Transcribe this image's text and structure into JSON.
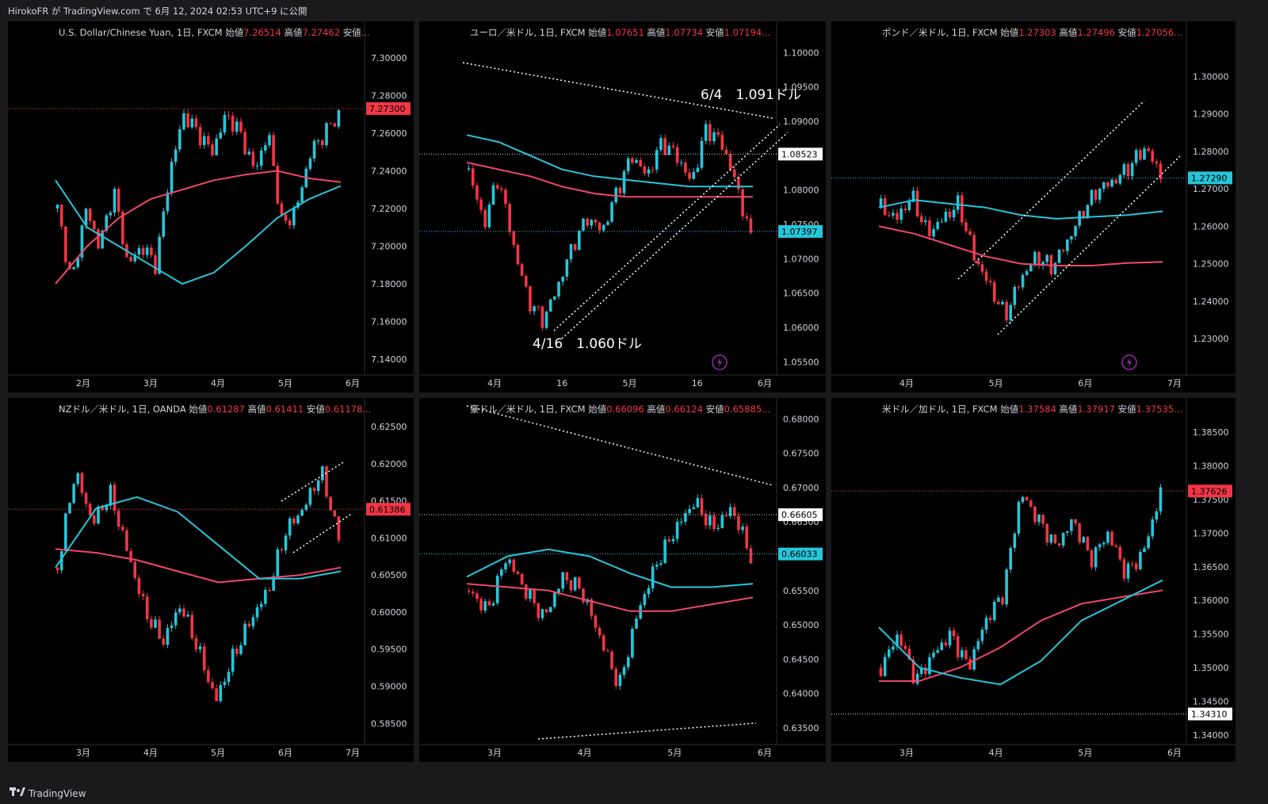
{
  "header": {
    "published_line": "HirokoFR が TradingView.com で 6月 12, 2024 02:53 UTC+9 に公開"
  },
  "footer": {
    "brand": "TradingView",
    "logo_icon": "tradingview-logo-icon"
  },
  "colors": {
    "up": "#26c6da",
    "down": "#f23645",
    "ma_fast": "#26c6da",
    "ma_slow": "#f2466e",
    "background": "#000000",
    "grid_bg": "#1a1a1d"
  },
  "panels": [
    {
      "id": "usdcny",
      "title": "U.S. Dollar/Chinese Yuan, 1日, FXCM",
      "open_label": "始値",
      "open": "7.26514",
      "high_label": "高値",
      "high": "7.27462",
      "low_label": "安値",
      "low_trunc": "...",
      "chart_data": {
        "type": "candlestick",
        "ylim": [
          7.135,
          7.31
        ],
        "yticks": [
          "7.30000",
          "7.28000",
          "7.26000",
          "7.24000",
          "7.22000",
          "7.20000",
          "7.18000",
          "7.16000",
          "7.14000"
        ],
        "ytick_values": [
          7.3,
          7.28,
          7.26,
          7.24,
          7.22,
          7.2,
          7.18,
          7.16,
          7.14
        ],
        "xticks": [
          "2月",
          "3月",
          "4月",
          "5月",
          "6月"
        ],
        "price_label": "7.27300",
        "price_value": 7.273,
        "price_label_color": "#f23645",
        "start": 7.22,
        "path": [
          7.18,
          7.22,
          7.2,
          7.23,
          7.19,
          7.2,
          7.19,
          7.24,
          7.27,
          7.26,
          7.25,
          7.27,
          7.26,
          7.24,
          7.26,
          7.21,
          7.22,
          7.25,
          7.26,
          7.27
        ],
        "ma_fast": [
          7.235,
          7.21,
          7.2,
          7.19,
          7.18,
          7.186,
          7.2,
          7.215,
          7.225,
          7.232
        ],
        "ma_slow": [
          7.18,
          7.2,
          7.215,
          7.225,
          7.23,
          7.235,
          7.238,
          7.24,
          7.236,
          7.234
        ]
      }
    },
    {
      "id": "eurusd",
      "title": "ユーロ／米ドル, 1日, FXCM",
      "open_label": "始値",
      "open": "1.07651",
      "high_label": "高値",
      "high": "1.07734",
      "low_label": "安値",
      "low_trunc": "1.07194...",
      "chart_data": {
        "type": "candlestick",
        "ylim": [
          1.054,
          1.102
        ],
        "yticks": [
          "1.10000",
          "1.09500",
          "1.09000",
          "1.08500",
          "1.08000",
          "1.07500",
          "1.07000",
          "1.06500",
          "1.06000",
          "1.05500"
        ],
        "ytick_values": [
          1.1,
          1.095,
          1.09,
          1.085,
          1.08,
          1.075,
          1.07,
          1.065,
          1.06,
          1.055
        ],
        "xticks": [
          "4月",
          "16",
          "5月",
          "16",
          "6月"
        ],
        "price_label": "1.07397",
        "price_value": 1.07397,
        "price_label_color": "#26c6da",
        "ref_label": "1.08523",
        "ref_value": 1.08523,
        "annotations": [
          "6/4　1.091ドル",
          "4/16　1.060ドル"
        ],
        "start": 1.083,
        "path": [
          1.075,
          1.082,
          1.072,
          1.064,
          1.061,
          1.066,
          1.072,
          1.076,
          1.074,
          1.08,
          1.085,
          1.082,
          1.087,
          1.085,
          1.081,
          1.089,
          1.087,
          1.081,
          1.073
        ],
        "ma_fast": [
          1.088,
          1.087,
          1.085,
          1.083,
          1.082,
          1.0815,
          1.081,
          1.0805,
          1.0805,
          1.0805
        ],
        "ma_slow": [
          1.084,
          1.083,
          1.082,
          1.0805,
          1.0795,
          1.079,
          1.079,
          1.079,
          1.079,
          1.079
        ]
      }
    },
    {
      "id": "gbpusd",
      "title": "ポンド／米ドル, 1日, FXCM",
      "open_label": "始値",
      "open": "1.27303",
      "high_label": "高値",
      "high": "1.27496",
      "low_label": "安値",
      "low_trunc": "1.27056...",
      "chart_data": {
        "type": "candlestick",
        "ylim": [
          1.222,
          1.31
        ],
        "yticks": [
          "1.30000",
          "1.29000",
          "1.28000",
          "1.27000",
          "1.26000",
          "1.25000",
          "1.24000",
          "1.23000"
        ],
        "ytick_values": [
          1.3,
          1.29,
          1.28,
          1.27,
          1.26,
          1.25,
          1.24,
          1.23
        ],
        "xticks": [
          "4月",
          "5月",
          "6月",
          "7月"
        ],
        "price_label": "1.27290",
        "price_value": 1.2729,
        "price_label_color": "#26c6da",
        "start": 1.265,
        "path": [
          1.262,
          1.268,
          1.258,
          1.262,
          1.266,
          1.252,
          1.244,
          1.236,
          1.246,
          1.252,
          1.249,
          1.256,
          1.264,
          1.27,
          1.272,
          1.276,
          1.281,
          1.274
        ],
        "ma_fast": [
          1.265,
          1.267,
          1.266,
          1.265,
          1.263,
          1.262,
          1.2625,
          1.263,
          1.264
        ],
        "ma_slow": [
          1.26,
          1.258,
          1.255,
          1.252,
          1.25,
          1.2495,
          1.2495,
          1.2502,
          1.2505
        ]
      }
    },
    {
      "id": "nzdusd",
      "title": "NZドル／米ドル, 1日, OANDA",
      "open_label": "始値",
      "open": "0.61287",
      "high_label": "高値",
      "high": "0.61411",
      "low_label": "安値",
      "low_trunc": "0.61178...",
      "chart_data": {
        "type": "candlestick",
        "ylim": [
          0.583,
          0.6265
        ],
        "yticks": [
          "0.62500",
          "0.62000",
          "0.61500",
          "0.61000",
          "0.60500",
          "0.60000",
          "0.59500",
          "0.59000",
          "0.58500"
        ],
        "ytick_values": [
          0.625,
          0.62,
          0.615,
          0.61,
          0.605,
          0.6,
          0.595,
          0.59,
          0.585
        ],
        "xticks": [
          "3月",
          "4月",
          "5月",
          "6月",
          "7月"
        ],
        "price_label": "0.61386",
        "price_value": 0.61386,
        "price_label_color": "#f23645",
        "start": 0.606,
        "path": [
          0.619,
          0.612,
          0.616,
          0.608,
          0.6,
          0.596,
          0.601,
          0.595,
          0.588,
          0.594,
          0.599,
          0.603,
          0.611,
          0.614,
          0.619,
          0.61
        ],
        "ma_fast": [
          0.606,
          0.614,
          0.6155,
          0.6135,
          0.609,
          0.6045,
          0.6045,
          0.6055
        ],
        "ma_slow": [
          0.6085,
          0.608,
          0.607,
          0.6055,
          0.604,
          0.6045,
          0.605,
          0.606
        ]
      }
    },
    {
      "id": "audusd",
      "title": "豪ドル／米ドル, 1日, FXCM",
      "open_label": "始値",
      "open": "0.66096",
      "high_label": "高値",
      "high": "0.66124",
      "low_label": "安値",
      "low_trunc": "0.65885...",
      "chart_data": {
        "type": "candlestick",
        "ylim": [
          0.6335,
          0.6805
        ],
        "yticks": [
          "0.68000",
          "0.67500",
          "0.67000",
          "0.66500",
          "0.66000",
          "0.65500",
          "0.65000",
          "0.64500",
          "0.64000",
          "0.63500"
        ],
        "ytick_values": [
          0.68,
          0.675,
          0.67,
          0.665,
          0.66,
          0.655,
          0.65,
          0.645,
          0.64,
          0.635
        ],
        "xticks": [
          "3月",
          "4月",
          "5月",
          "6月"
        ],
        "price_label": "0.66033",
        "price_value": 0.66033,
        "price_label_color": "#26c6da",
        "ref_label": "0.66605",
        "ref_value": 0.66605,
        "start": 0.655,
        "path": [
          0.652,
          0.66,
          0.655,
          0.651,
          0.657,
          0.655,
          0.648,
          0.641,
          0.652,
          0.659,
          0.664,
          0.668,
          0.664,
          0.667,
          0.66
        ],
        "ma_fast": [
          0.657,
          0.66,
          0.661,
          0.66,
          0.6575,
          0.6555,
          0.6555,
          0.656
        ],
        "ma_slow": [
          0.656,
          0.6555,
          0.655,
          0.6535,
          0.652,
          0.652,
          0.653,
          0.654
        ]
      }
    },
    {
      "id": "usdcad",
      "title": "米ドル／加ドル, 1日, FXCM",
      "open_label": "始値",
      "open": "1.37584",
      "high_label": "高値",
      "high": "1.37917",
      "low_label": "安値",
      "low_trunc": "1.37535...",
      "chart_data": {
        "type": "candlestick",
        "ylim": [
          1.3395,
          1.3875
        ],
        "yticks": [
          "1.38500",
          "1.38000",
          "1.37500",
          "1.37000",
          "1.36500",
          "1.36000",
          "1.35500",
          "1.35000",
          "1.34500",
          "1.34000"
        ],
        "ytick_values": [
          1.385,
          1.38,
          1.375,
          1.37,
          1.365,
          1.36,
          1.355,
          1.35,
          1.345,
          1.34
        ],
        "xticks": [
          "3月",
          "4月",
          "5月",
          "6月"
        ],
        "price_label": "1.37626",
        "price_value": 1.37626,
        "price_label_color": "#f23645",
        "ref_label": "1.34310",
        "ref_value": 1.3431,
        "start": 1.35,
        "path": [
          1.355,
          1.348,
          1.352,
          1.355,
          1.35,
          1.357,
          1.361,
          1.376,
          1.372,
          1.368,
          1.372,
          1.366,
          1.37,
          1.364,
          1.367,
          1.376
        ],
        "ma_fast": [
          1.356,
          1.35,
          1.3485,
          1.3475,
          1.351,
          1.357,
          1.36,
          1.363
        ],
        "ma_slow": [
          1.348,
          1.348,
          1.35,
          1.353,
          1.357,
          1.3595,
          1.3605,
          1.3615
        ]
      }
    }
  ]
}
